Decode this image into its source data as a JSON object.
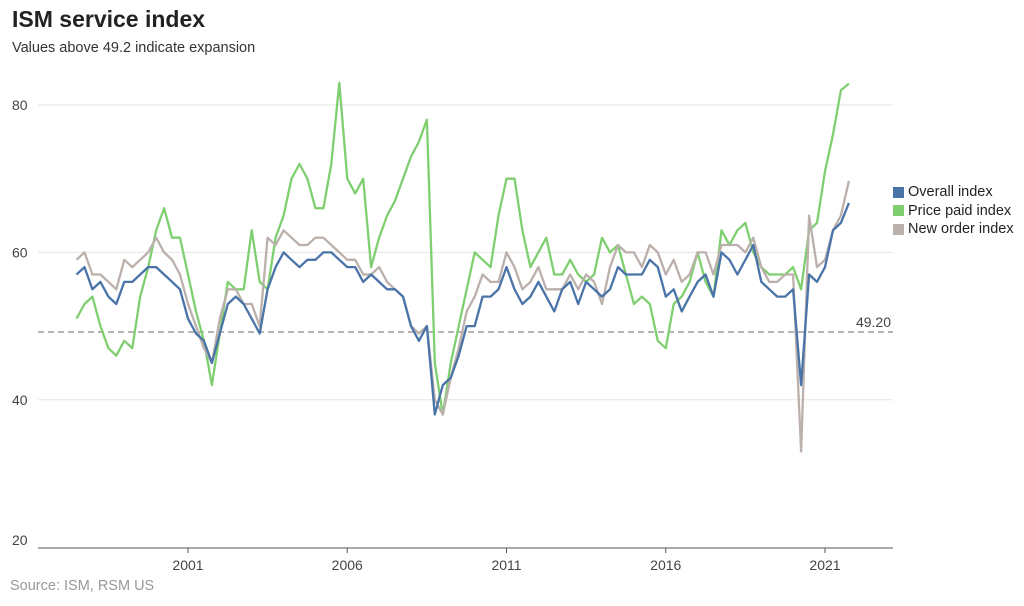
{
  "chart_data": {
    "type": "line",
    "title": "ISM service index",
    "subtitle": "Values above 49.2 indicate expansion",
    "source": "Source: ISM, RSM US",
    "xlabel": "",
    "ylabel": "",
    "ylim": [
      20,
      85
    ],
    "yticks": [
      "20",
      "40",
      "60",
      "80"
    ],
    "xticks": [
      "2001",
      "2006",
      "2011",
      "2016",
      "2021"
    ],
    "grid": "horizontal",
    "legend_position": "right",
    "reference_line": {
      "value": 49.2,
      "label": "49.20",
      "style": "dashed",
      "color": "#888888"
    },
    "x": [
      "1997-07",
      "1997-10",
      "1998-01",
      "1998-04",
      "1998-07",
      "1998-10",
      "1999-01",
      "1999-04",
      "1999-07",
      "1999-10",
      "2000-01",
      "2000-04",
      "2000-07",
      "2000-10",
      "2001-01",
      "2001-04",
      "2001-07",
      "2001-10",
      "2002-01",
      "2002-04",
      "2002-07",
      "2002-10",
      "2003-01",
      "2003-04",
      "2003-07",
      "2003-10",
      "2004-01",
      "2004-04",
      "2004-07",
      "2004-10",
      "2005-01",
      "2005-04",
      "2005-07",
      "2005-10",
      "2006-01",
      "2006-04",
      "2006-07",
      "2006-10",
      "2007-01",
      "2007-04",
      "2007-07",
      "2007-10",
      "2008-01",
      "2008-04",
      "2008-07",
      "2008-10",
      "2009-01",
      "2009-04",
      "2009-07",
      "2009-10",
      "2010-01",
      "2010-04",
      "2010-07",
      "2010-10",
      "2011-01",
      "2011-04",
      "2011-07",
      "2011-10",
      "2012-01",
      "2012-04",
      "2012-07",
      "2012-10",
      "2013-01",
      "2013-04",
      "2013-07",
      "2013-10",
      "2014-01",
      "2014-04",
      "2014-07",
      "2014-10",
      "2015-01",
      "2015-04",
      "2015-07",
      "2015-10",
      "2016-01",
      "2016-04",
      "2016-07",
      "2016-10",
      "2017-01",
      "2017-04",
      "2017-07",
      "2017-10",
      "2018-01",
      "2018-04",
      "2018-07",
      "2018-10",
      "2019-01",
      "2019-04",
      "2019-07",
      "2019-10",
      "2020-01",
      "2020-04",
      "2020-07",
      "2020-10",
      "2021-01",
      "2021-04",
      "2021-07",
      "2021-10"
    ],
    "series": [
      {
        "name": "Price paid index",
        "color": "#7fcf71",
        "values": [
          51,
          53,
          54,
          50,
          47,
          46,
          48,
          47,
          54,
          58,
          63,
          66,
          62,
          62,
          57,
          52,
          48,
          42,
          49,
          56,
          55,
          55,
          63,
          56,
          55,
          62,
          65,
          70,
          72,
          70,
          66,
          66,
          72,
          83,
          70,
          68,
          70,
          58,
          62,
          65,
          67,
          70,
          73,
          75,
          78,
          45,
          38,
          45,
          50,
          55,
          60,
          59,
          58,
          65,
          70,
          70,
          63,
          58,
          60,
          62,
          57,
          57,
          59,
          57,
          56,
          57,
          62,
          60,
          61,
          57,
          53,
          54,
          53,
          48,
          47,
          53,
          54,
          56,
          60,
          56,
          54,
          63,
          61,
          63,
          64,
          60,
          58,
          57,
          57,
          57,
          58,
          55,
          63,
          64,
          71,
          76,
          82,
          82.9
        ]
      },
      {
        "name": "New order index",
        "color": "#bbb0ab",
        "values": [
          59,
          60,
          57,
          57,
          56,
          55,
          59,
          58,
          59,
          60,
          62,
          60,
          59,
          57,
          53,
          50,
          47,
          45,
          51,
          55,
          55,
          53,
          53,
          50,
          62,
          61,
          63,
          62,
          61,
          61,
          62,
          62,
          61,
          60,
          59,
          59,
          57,
          57,
          58,
          56,
          55,
          54,
          50,
          49,
          50,
          40,
          38,
          43,
          47,
          52,
          54,
          57,
          56,
          56,
          60,
          58,
          55,
          56,
          58,
          55,
          55,
          55,
          57,
          55,
          57,
          56,
          53,
          58,
          61,
          60,
          60,
          58,
          61,
          60,
          57,
          59,
          56,
          57,
          60,
          60,
          57,
          61,
          61,
          61,
          60,
          62,
          58,
          56,
          56,
          57,
          57,
          33,
          65,
          58,
          59,
          63,
          65,
          69.7
        ]
      },
      {
        "name": "Overall index",
        "color": "#4a74a8",
        "values": [
          57,
          58,
          55,
          56,
          54,
          53,
          56,
          56,
          57,
          58,
          58,
          57,
          56,
          55,
          51,
          49,
          48,
          45,
          49,
          53,
          54,
          53,
          51,
          49,
          55,
          58,
          60,
          59,
          58,
          59,
          59,
          60,
          60,
          59,
          58,
          58,
          56,
          57,
          56,
          55,
          55,
          54,
          50,
          48,
          50,
          38,
          42,
          43,
          46,
          50,
          50,
          54,
          54,
          55,
          58,
          55,
          53,
          54,
          56,
          54,
          52,
          55,
          56,
          53,
          56,
          55,
          54,
          55,
          58,
          57,
          57,
          57,
          59,
          58,
          54,
          55,
          52,
          54,
          56,
          57,
          54,
          60,
          59,
          57,
          59,
          61,
          56,
          55,
          54,
          54,
          55,
          42,
          57,
          56,
          58,
          63,
          64,
          66.7
        ]
      }
    ],
    "legend": [
      "Overall index",
      "Price paid index",
      "New order index"
    ]
  }
}
